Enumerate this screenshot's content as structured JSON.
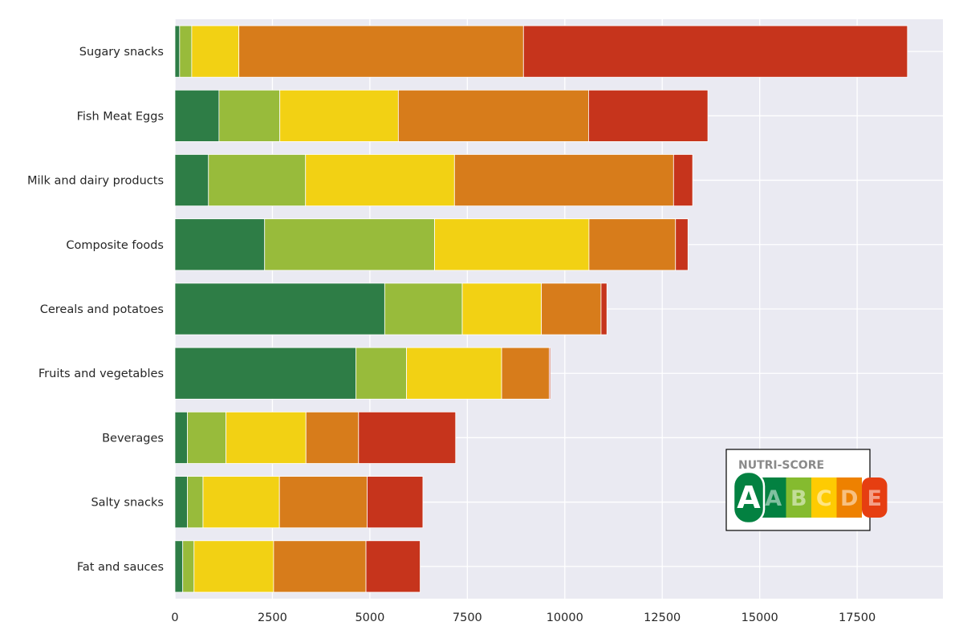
{
  "chart_data": {
    "type": "bar",
    "orientation": "horizontal",
    "stacked": true,
    "categories": [
      "Sugary snacks",
      "Fish Meat Eggs",
      "Milk and dairy products",
      "Composite foods",
      "Cereals and potatoes",
      "Fruits and vegetables",
      "Beverages",
      "Salty snacks",
      "Fat and sauces"
    ],
    "series": [
      {
        "color": "#2e7d46",
        "values": [
          120,
          1130,
          860,
          2300,
          5380,
          4640,
          320,
          320,
          200
        ]
      },
      {
        "color": "#98bb3b",
        "values": [
          310,
          1560,
          2490,
          4360,
          1990,
          1300,
          990,
          400,
          290
        ]
      },
      {
        "color": "#f2d114",
        "values": [
          1210,
          3040,
          3820,
          3960,
          2030,
          2440,
          2050,
          1960,
          2040
        ]
      },
      {
        "color": "#d77c1b",
        "values": [
          7300,
          4880,
          5620,
          2220,
          1530,
          1220,
          1350,
          2250,
          2370
        ]
      },
      {
        "color": "#c6341c",
        "values": [
          9850,
          3060,
          490,
          320,
          150,
          30,
          2490,
          1430,
          1390
        ]
      }
    ],
    "xlim": [
      0,
      19700
    ],
    "xticks": [
      0,
      2500,
      5000,
      7500,
      10000,
      12500,
      15000,
      17500
    ],
    "xlabel": "",
    "ylabel": "",
    "title": "",
    "grid": true,
    "background": "#eaeaf2"
  },
  "legend_logo": {
    "title": "NUTRI-SCORE",
    "letters": [
      "A",
      "B",
      "C",
      "D",
      "E"
    ],
    "colors": [
      "#038141",
      "#85bb2f",
      "#fecb02",
      "#ee8100",
      "#e63e11"
    ],
    "selected": "A",
    "placement": "lower-right"
  }
}
